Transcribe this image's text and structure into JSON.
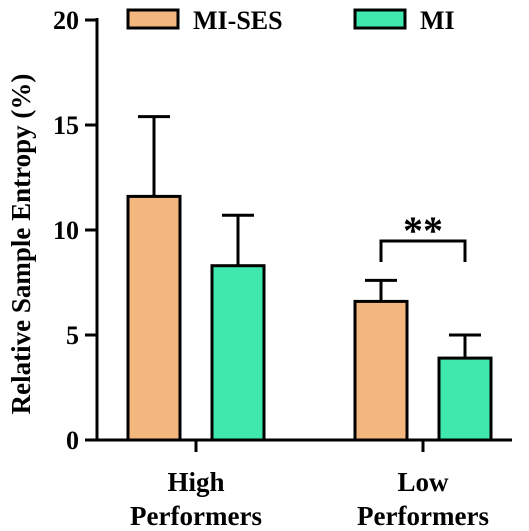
{
  "chart_data": {
    "type": "bar",
    "title": "",
    "xlabel": "",
    "ylabel": "Relative Sample Entropy (%)",
    "ylim": [
      0,
      20
    ],
    "yticks": [
      0,
      5,
      10,
      15,
      20
    ],
    "grid": false,
    "legend_position": "top",
    "categories": [
      [
        "High",
        "Performers"
      ],
      [
        "Low",
        "Performers"
      ]
    ],
    "series": [
      {
        "name": "MI-SES",
        "color": "#f2b67e",
        "values": [
          11.6,
          6.6
        ],
        "errors": [
          3.8,
          1.0
        ]
      },
      {
        "name": "MI",
        "color": "#3fe8ad",
        "values": [
          8.3,
          3.9
        ],
        "errors": [
          2.4,
          1.1
        ]
      }
    ],
    "annotations": [
      {
        "text": "**",
        "category_index": 1
      }
    ]
  }
}
